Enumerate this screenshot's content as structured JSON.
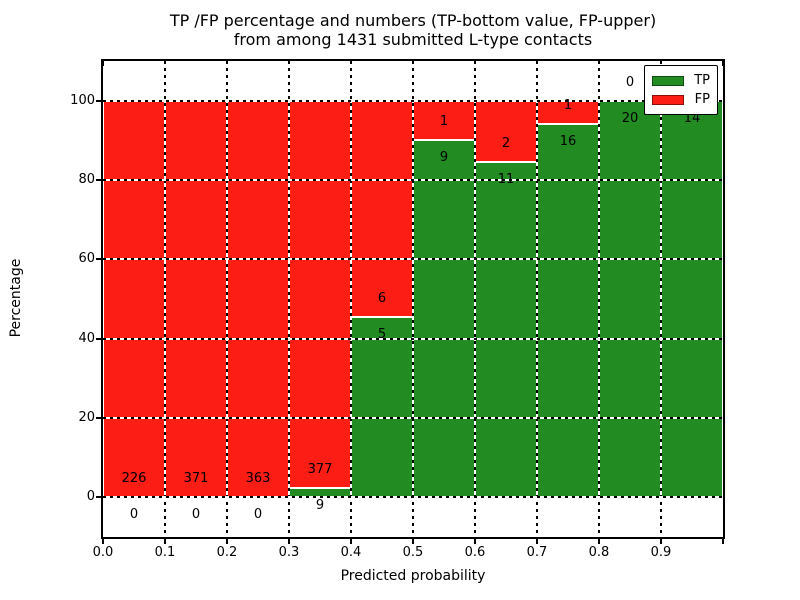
{
  "title": {
    "line1": "TP /FP percentage and numbers (TP-bottom value, FP-upper)",
    "line2": "from among 1431 submitted L-type contacts"
  },
  "axes": {
    "xlabel": "Predicted probability",
    "ylabel": "Percentage"
  },
  "legend": {
    "position": "upper-right",
    "items": [
      {
        "label": "TP",
        "color": "#228b22"
      },
      {
        "label": "FP",
        "color": "#fc1d14"
      }
    ]
  },
  "chart_data": {
    "type": "bar",
    "stacked": true,
    "title": "TP /FP percentage and numbers (TP-bottom value, FP-upper) from among 1431 submitted L-type contacts",
    "xlabel": "Predicted probability",
    "ylabel": "Percentage",
    "total_contacts": 1431,
    "bin_width": 0.1,
    "categories": [
      "0.0",
      "0.1",
      "0.2",
      "0.3",
      "0.4",
      "0.5",
      "0.6",
      "0.7",
      "0.8",
      "0.9"
    ],
    "series": [
      {
        "name": "TP",
        "color": "#228b22",
        "counts": [
          0,
          0,
          0,
          9,
          5,
          9,
          11,
          16,
          20,
          14
        ]
      },
      {
        "name": "FP",
        "color": "#fc1d14",
        "counts": [
          226,
          371,
          363,
          377,
          6,
          1,
          2,
          1,
          0,
          0
        ]
      }
    ],
    "tp_percent": [
      0.0,
      0.0,
      0.0,
      2.33,
      45.45,
      90.0,
      84.62,
      94.12,
      100.0,
      100.0
    ],
    "xlim": [
      0.0,
      1.0
    ],
    "ylim": [
      -10,
      110
    ],
    "xticks": [
      "0.0",
      "0.1",
      "0.2",
      "0.3",
      "0.4",
      "0.5",
      "0.6",
      "0.7",
      "0.8",
      "0.9"
    ],
    "yticks": [
      0,
      20,
      40,
      60,
      80,
      100
    ],
    "grid": true,
    "label_offset_percent": 4.5
  }
}
